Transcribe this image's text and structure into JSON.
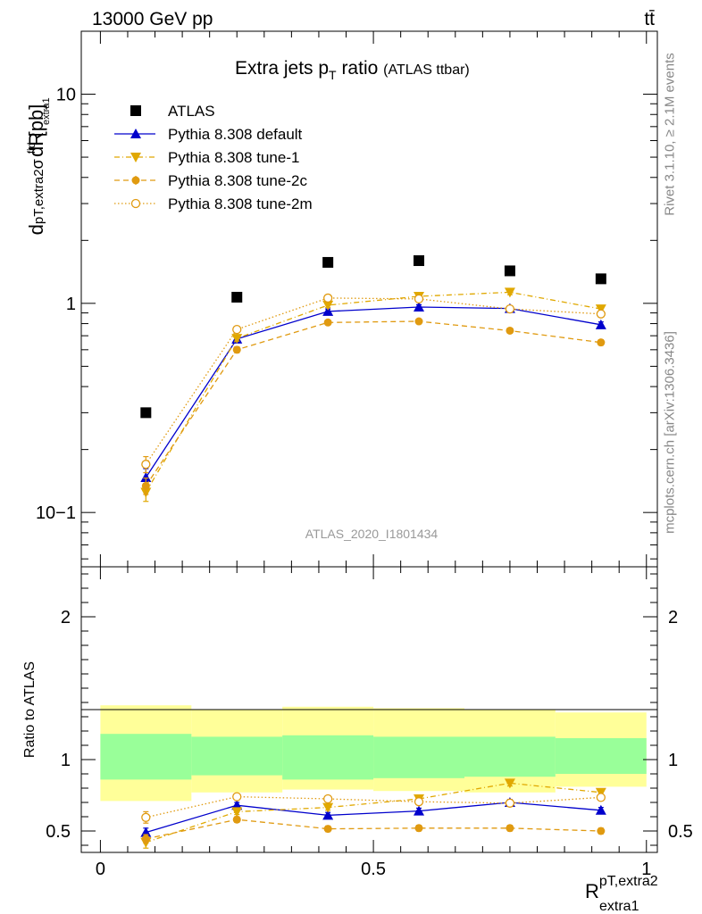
{
  "header": {
    "left": "13000 GeV pp",
    "right": "tt̄"
  },
  "side": {
    "rivet": "Rivet 3.1.10, ≥ 2.1M events",
    "mcplots": "mcplots.cern.ch [arXiv:1306.3436]"
  },
  "chart_data": [
    {
      "type": "scatter",
      "title": "Extra jets p",
      "title_sub": "T",
      "title_rest": " ratio",
      "title_small": "(ATLAS ttbar)",
      "watermark": "ATLAS_2020_I1801434",
      "ylabel": "dσfid / dR pT,extra2 extra1 [pb]",
      "yscale": "log",
      "ylim": [
        0.055,
        20
      ],
      "xlim": [
        -0.035,
        1.02
      ],
      "y_tick_labels": [
        "10−1",
        "1",
        "10"
      ],
      "x": [
        0.0833,
        0.25,
        0.4167,
        0.5833,
        0.75,
        0.9167
      ],
      "series": [
        {
          "name": "ATLAS",
          "color": "#000000",
          "marker": "square",
          "line": "none",
          "values": [
            0.3,
            1.07,
            1.57,
            1.6,
            1.43,
            1.31
          ]
        },
        {
          "name": "Pythia 8.308 default",
          "color": "#0000cc",
          "marker": "triangle-up",
          "line": "solid",
          "values": [
            0.147,
            0.675,
            0.915,
            0.96,
            0.945,
            0.79
          ],
          "errors": [
            0.015,
            0.02,
            0.025,
            0.025,
            0.025,
            0.025
          ]
        },
        {
          "name": "Pythia 8.308 tune-1",
          "color": "#e0a800",
          "marker": "triangle-down",
          "line": "dashdot",
          "values": [
            0.125,
            0.68,
            0.98,
            1.08,
            1.13,
            0.94
          ],
          "errors": [
            0.012,
            0.02,
            0.025,
            0.025,
            0.03,
            0.025
          ]
        },
        {
          "name": "Pythia 8.308 tune-2c",
          "color": "#e09a10",
          "marker": "circle",
          "line": "dashed",
          "values": [
            0.134,
            0.6,
            0.81,
            0.82,
            0.74,
            0.65
          ],
          "errors": [
            0.012,
            0.02,
            0.02,
            0.02,
            0.02,
            0.02
          ]
        },
        {
          "name": "Pythia 8.308 tune-2m",
          "color": "#e09a10",
          "marker": "open-circle",
          "line": "dotted",
          "values": [
            0.17,
            0.75,
            1.06,
            1.05,
            0.94,
            0.89
          ],
          "errors": [
            0.015,
            0.02,
            0.025,
            0.025,
            0.025,
            0.025
          ]
        }
      ]
    },
    {
      "type": "scatter",
      "ylabel": "Ratio to ATLAS",
      "xlabel": "R",
      "xlabel_sup": "pT,extra2",
      "xlabel_sub": "extra1",
      "ylim": [
        0.35,
        2.35
      ],
      "xlim": [
        -0.035,
        1.02
      ],
      "y_ticks": [
        0.5,
        1,
        2
      ],
      "y_tick_labels": [
        "0.5",
        "1",
        "2"
      ],
      "x_ticks": [
        0,
        0.5,
        1
      ],
      "x_tick_labels": [
        "0",
        "0.5",
        "1"
      ],
      "bands": {
        "bin_edges": [
          0,
          0.1667,
          0.3333,
          0.5,
          0.6667,
          0.8333,
          1.0
        ],
        "total": {
          "color": "#ffff99",
          "low": [
            0.71,
            0.77,
            0.79,
            0.78,
            0.77,
            0.81
          ],
          "high": [
            1.38,
            1.35,
            1.37,
            1.36,
            1.35,
            1.33
          ]
        },
        "stat": {
          "color": "#99ff99",
          "low": [
            0.86,
            0.89,
            0.86,
            0.87,
            0.88,
            0.9
          ],
          "high": [
            1.18,
            1.16,
            1.17,
            1.16,
            1.16,
            1.15
          ]
        }
      },
      "series": [
        {
          "name": "Pythia 8.308 default",
          "color": "#0000cc",
          "marker": "triangle-up",
          "line": "solid",
          "values": [
            0.49,
            0.68,
            0.61,
            0.64,
            0.7,
            0.645
          ],
          "errors": [
            0.03,
            0.02,
            0.02,
            0.02,
            0.02,
            0.02
          ]
        },
        {
          "name": "Pythia 8.308 tune-1",
          "color": "#e0a800",
          "marker": "triangle-down",
          "line": "dashdot",
          "values": [
            0.42,
            0.635,
            0.665,
            0.725,
            0.835,
            0.77
          ],
          "errors": [
            0.04,
            0.02,
            0.02,
            0.02,
            0.02,
            0.02
          ]
        },
        {
          "name": "Pythia 8.308 tune-2c",
          "color": "#e09a10",
          "marker": "circle",
          "line": "dashed",
          "values": [
            0.445,
            0.58,
            0.515,
            0.52,
            0.52,
            0.5
          ],
          "errors": [
            0.03,
            0.02,
            0.02,
            0.02,
            0.02,
            0.02
          ]
        },
        {
          "name": "Pythia 8.308 tune-2m",
          "color": "#e09a10",
          "marker": "open-circle",
          "line": "dotted",
          "values": [
            0.595,
            0.74,
            0.725,
            0.705,
            0.695,
            0.735
          ],
          "errors": [
            0.04,
            0.02,
            0.02,
            0.02,
            0.02,
            0.02
          ]
        }
      ]
    }
  ]
}
